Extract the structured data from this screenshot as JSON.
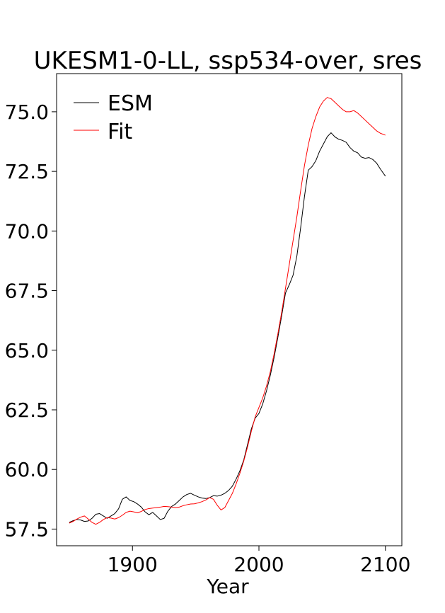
{
  "chart_data": {
    "type": "line",
    "title": "UKESM1-0-LL, ssp534-over, sres",
    "xlabel": "Year",
    "ylabel": "",
    "xlim": [
      1840,
      2113
    ],
    "ylim": [
      56.8,
      76.6
    ],
    "xticks": [
      1900,
      2000,
      2100
    ],
    "yticks": [
      57.5,
      60.0,
      62.5,
      65.0,
      67.5,
      70.0,
      72.5,
      75.0
    ],
    "xtick_labels": [
      "1900",
      "2000",
      "2100"
    ],
    "ytick_labels": [
      "57.5",
      "60.0",
      "62.5",
      "65.0",
      "67.5",
      "70.0",
      "72.5",
      "75.0"
    ],
    "grid": false,
    "legend_position": "top-left",
    "series": [
      {
        "name": "ESM",
        "color": "#000000",
        "x": [
          1850,
          1853,
          1856,
          1859,
          1862,
          1865,
          1868,
          1871,
          1874,
          1877,
          1880,
          1883,
          1886,
          1889,
          1892,
          1895,
          1898,
          1901,
          1904,
          1907,
          1910,
          1913,
          1916,
          1919,
          1922,
          1925,
          1928,
          1931,
          1934,
          1937,
          1940,
          1943,
          1946,
          1949,
          1952,
          1955,
          1958,
          1961,
          1964,
          1967,
          1970,
          1973,
          1976,
          1979,
          1982,
          1985,
          1988,
          1991,
          1994,
          1997,
          2000,
          2003,
          2006,
          2009,
          2012,
          2015,
          2018,
          2021,
          2024,
          2027,
          2030,
          2033,
          2036,
          2039,
          2042,
          2045,
          2048,
          2051,
          2054,
          2057,
          2060,
          2063,
          2066,
          2069,
          2072,
          2075,
          2078,
          2081,
          2084,
          2087,
          2090,
          2093,
          2096,
          2100
        ],
        "values": [
          57.78,
          57.85,
          57.9,
          57.88,
          57.82,
          57.84,
          57.95,
          58.12,
          58.15,
          58.05,
          57.95,
          58.05,
          58.15,
          58.35,
          58.75,
          58.85,
          58.7,
          58.65,
          58.55,
          58.42,
          58.22,
          58.1,
          58.2,
          58.05,
          57.9,
          57.95,
          58.25,
          58.45,
          58.55,
          58.7,
          58.85,
          58.95,
          59.0,
          58.92,
          58.85,
          58.8,
          58.78,
          58.82,
          58.9,
          58.88,
          58.92,
          59.0,
          59.12,
          59.3,
          59.6,
          59.95,
          60.4,
          61.05,
          61.7,
          62.15,
          62.35,
          62.75,
          63.3,
          63.95,
          64.7,
          65.55,
          66.45,
          67.4,
          67.75,
          68.15,
          68.95,
          70.15,
          71.45,
          72.55,
          72.7,
          72.95,
          73.35,
          73.65,
          73.95,
          74.12,
          73.95,
          73.85,
          73.8,
          73.72,
          73.5,
          73.35,
          73.28,
          73.1,
          73.05,
          73.08,
          73.0,
          72.85,
          72.6,
          72.3
        ]
      },
      {
        "name": "Fit",
        "color": "#ff0000",
        "x": [
          1850,
          1853,
          1856,
          1859,
          1862,
          1865,
          1868,
          1871,
          1874,
          1877,
          1880,
          1883,
          1886,
          1889,
          1892,
          1895,
          1898,
          1901,
          1904,
          1907,
          1910,
          1913,
          1916,
          1919,
          1922,
          1925,
          1928,
          1931,
          1934,
          1937,
          1940,
          1943,
          1946,
          1949,
          1952,
          1955,
          1958,
          1961,
          1964,
          1967,
          1970,
          1973,
          1976,
          1979,
          1982,
          1985,
          1988,
          1991,
          1994,
          1997,
          2000,
          2003,
          2006,
          2009,
          2012,
          2015,
          2018,
          2021,
          2024,
          2027,
          2030,
          2033,
          2036,
          2039,
          2042,
          2045,
          2048,
          2051,
          2054,
          2057,
          2060,
          2063,
          2066,
          2069,
          2072,
          2075,
          2078,
          2081,
          2084,
          2087,
          2090,
          2093,
          2096,
          2100
        ],
        "values": [
          57.75,
          57.82,
          57.92,
          58.0,
          58.05,
          57.92,
          57.78,
          57.7,
          57.78,
          57.9,
          57.98,
          57.96,
          57.92,
          57.98,
          58.08,
          58.2,
          58.25,
          58.22,
          58.18,
          58.24,
          58.32,
          58.36,
          58.38,
          58.4,
          58.42,
          58.45,
          58.44,
          58.42,
          58.4,
          58.42,
          58.48,
          58.52,
          58.55,
          58.56,
          58.6,
          58.65,
          58.72,
          58.82,
          58.75,
          58.5,
          58.3,
          58.4,
          58.7,
          59.0,
          59.4,
          59.85,
          60.35,
          60.95,
          61.6,
          62.2,
          62.6,
          63.0,
          63.5,
          64.1,
          64.85,
          65.7,
          66.6,
          67.6,
          68.6,
          69.6,
          70.6,
          71.7,
          72.75,
          73.6,
          74.3,
          74.8,
          75.2,
          75.45,
          75.6,
          75.55,
          75.4,
          75.25,
          75.1,
          75.0,
          75.0,
          75.05,
          74.95,
          74.8,
          74.65,
          74.5,
          74.35,
          74.2,
          74.1,
          74.02
        ]
      }
    ]
  }
}
